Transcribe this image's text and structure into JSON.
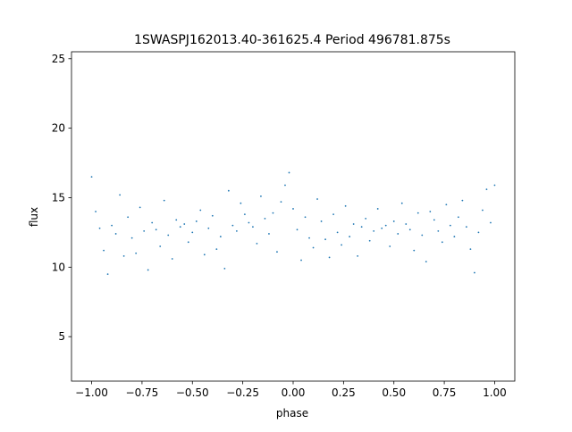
{
  "chart_data": {
    "type": "scatter",
    "title": "1SWASPJ162013.40-361625.4 Period 496781.875s",
    "xlabel": "phase",
    "ylabel": "flux",
    "xlim": [
      -1.1,
      1.1
    ],
    "ylim": [
      1.8,
      25.5
    ],
    "xticks": [
      {
        "value": -1.0,
        "label": "−1.00"
      },
      {
        "value": -0.75,
        "label": "−0.75"
      },
      {
        "value": -0.5,
        "label": "−0.50"
      },
      {
        "value": -0.25,
        "label": "−0.25"
      },
      {
        "value": 0.0,
        "label": "0.00"
      },
      {
        "value": 0.25,
        "label": "0.25"
      },
      {
        "value": 0.5,
        "label": "0.50"
      },
      {
        "value": 0.75,
        "label": "0.75"
      },
      {
        "value": 1.0,
        "label": "1.00"
      }
    ],
    "yticks": [
      {
        "value": 5,
        "label": "5"
      },
      {
        "value": 10,
        "label": "10"
      },
      {
        "value": 15,
        "label": "15"
      },
      {
        "value": 20,
        "label": "20"
      },
      {
        "value": 25,
        "label": "25"
      }
    ],
    "grid": false,
    "legend": "none",
    "marker_color": "#1f77b4",
    "series": [
      {
        "x": [
          -1.0,
          -0.98,
          -0.96,
          -0.94,
          -0.92,
          -0.9,
          -0.88,
          -0.86,
          -0.84,
          -0.82,
          -0.8,
          -0.78,
          -0.76,
          -0.74,
          -0.72,
          -0.7,
          -0.68,
          -0.66,
          -0.64,
          -0.62,
          -0.6,
          -0.58,
          -0.56,
          -0.54,
          -0.52,
          -0.5,
          -0.48,
          -0.46,
          -0.44,
          -0.42,
          -0.4,
          -0.38,
          -0.36,
          -0.34,
          -0.32,
          -0.3,
          -0.28,
          -0.26,
          -0.24,
          -0.22,
          -0.2,
          -0.18,
          -0.16,
          -0.14,
          -0.12,
          -0.1,
          -0.08,
          -0.06,
          -0.04,
          -0.02,
          0.0,
          0.02,
          0.04,
          0.06,
          0.08,
          0.1,
          0.12,
          0.14,
          0.16,
          0.18,
          0.2,
          0.22,
          0.24,
          0.26,
          0.28,
          0.3,
          0.32,
          0.34,
          0.36,
          0.38,
          0.4,
          0.42,
          0.44,
          0.46,
          0.48,
          0.5,
          0.52,
          0.54,
          0.56,
          0.58,
          0.6,
          0.62,
          0.64,
          0.66,
          0.68,
          0.7,
          0.72,
          0.74,
          0.76,
          0.78,
          0.8,
          0.82,
          0.84,
          0.86,
          0.88,
          0.9,
          0.92,
          0.94,
          0.96,
          0.98,
          1.0
        ],
        "y": [
          16.5,
          14.0,
          12.8,
          11.2,
          9.5,
          13.0,
          12.4,
          15.2,
          10.8,
          13.6,
          12.1,
          11.0,
          14.3,
          12.6,
          9.8,
          13.2,
          12.7,
          11.5,
          14.8,
          12.3,
          10.6,
          13.4,
          12.9,
          13.1,
          11.8,
          12.5,
          13.3,
          14.1,
          10.9,
          12.8,
          13.7,
          11.3,
          12.2,
          9.9,
          15.5,
          13.0,
          12.6,
          14.6,
          13.8,
          13.2,
          12.9,
          11.7,
          15.1,
          13.5,
          12.4,
          13.9,
          11.1,
          14.7,
          15.9,
          16.8,
          14.2,
          12.7,
          10.5,
          13.6,
          12.1,
          11.4,
          14.9,
          13.3,
          12.0,
          10.7,
          13.8,
          12.5,
          11.6,
          14.4,
          12.2,
          13.1,
          10.8,
          12.9,
          13.5,
          11.9,
          12.6,
          14.2,
          12.8,
          13.0,
          11.5,
          13.3,
          12.4,
          14.6,
          13.1,
          12.7,
          11.2,
          13.9,
          12.3,
          10.4,
          14.0,
          13.4,
          12.6,
          11.8,
          14.5,
          13.0,
          12.2,
          13.6,
          14.8,
          12.9,
          11.3,
          9.6,
          12.5,
          14.1,
          15.6,
          13.2,
          15.9
        ]
      }
    ]
  }
}
